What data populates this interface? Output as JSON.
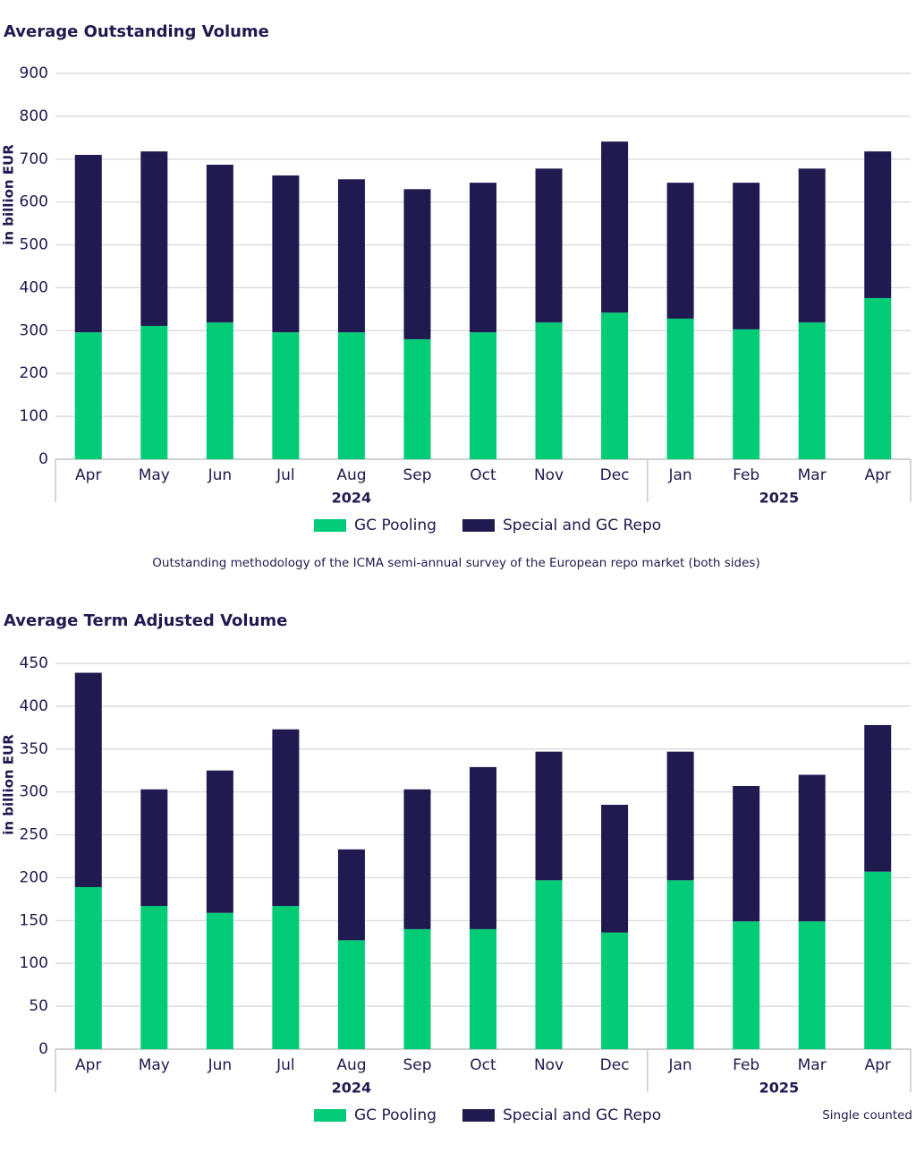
{
  "chart_data": [
    {
      "type": "stacked-bar",
      "title": "Average Outstanding Volume",
      "y_label": "in billion EUR",
      "category_groups": [
        {
          "name": "2024",
          "categories": [
            "Apr",
            "May",
            "Jun",
            "Jul",
            "Aug",
            "Sep",
            "Oct",
            "Nov",
            "Dec"
          ]
        },
        {
          "name": "2025",
          "categories": [
            "Jan",
            "Feb",
            "Mar",
            "Apr"
          ]
        }
      ],
      "series": [
        {
          "name": "GC Pooling",
          "color": "#00cc78",
          "values": [
            296,
            311,
            319,
            296,
            296,
            280,
            296,
            319,
            342,
            328,
            303,
            319,
            376
          ]
        },
        {
          "name": "Special and GC Repo",
          "color": "#1f1a4f",
          "values": [
            414,
            407,
            368,
            366,
            357,
            350,
            349,
            359,
            399,
            317,
            342,
            359,
            342
          ]
        }
      ],
      "ylim": [
        0,
        900
      ],
      "yticks": [
        0,
        100,
        200,
        300,
        400,
        500,
        600,
        700,
        800,
        900
      ],
      "grid": true,
      "note": "Outstanding methodology of the ICMA semi-annual survey of the European repo market (both sides)"
    },
    {
      "type": "stacked-bar",
      "title": "Average Term Adjusted Volume",
      "y_label": "in billion EUR",
      "category_groups": [
        {
          "name": "2024",
          "categories": [
            "Apr",
            "May",
            "Jun",
            "Jul",
            "Aug",
            "Sep",
            "Oct",
            "Nov",
            "Dec"
          ]
        },
        {
          "name": "2025",
          "categories": [
            "Jan",
            "Feb",
            "Mar",
            "Apr"
          ]
        }
      ],
      "series": [
        {
          "name": "GC Pooling",
          "color": "#00cc78",
          "values": [
            189,
            167,
            159,
            167,
            127,
            140,
            140,
            197,
            136,
            197,
            149,
            149,
            207
          ]
        },
        {
          "name": "Special and GC Repo",
          "color": "#1f1a4f",
          "values": [
            250,
            136,
            166,
            206,
            106,
            163,
            189,
            150,
            149,
            150,
            158,
            171,
            171
          ]
        }
      ],
      "ylim": [
        0,
        450
      ],
      "yticks": [
        0,
        50,
        100,
        150,
        200,
        250,
        300,
        350,
        400,
        450
      ],
      "grid": true,
      "note": "Single counted"
    }
  ]
}
